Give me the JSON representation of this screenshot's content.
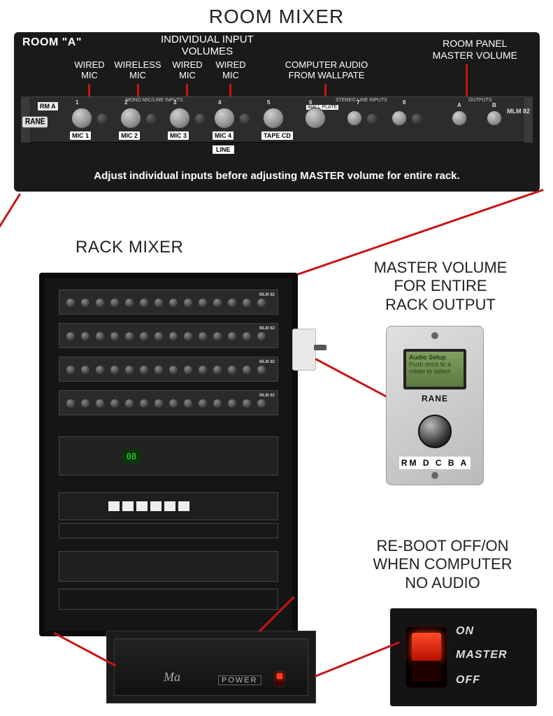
{
  "colors": {
    "accent": "#c91414",
    "panel": "#1a1a1a",
    "strip": "#2c2c2c",
    "text": "#222222",
    "white": "#ffffff"
  },
  "title": "ROOM MIXER",
  "mixer": {
    "room_label": "ROOM \"A\"",
    "individual_volumes": "INDIVIDUAL INPUT\nVOLUMES",
    "master_volume_label": "ROOM PANEL\nMASTER VOLUME",
    "columns": [
      {
        "label": "WIRED\nMIC",
        "tag": "MIC 1",
        "num": "1"
      },
      {
        "label": "WIRELESS\nMIC",
        "tag": "MIC 2",
        "num": "2"
      },
      {
        "label": "WIRED\nMIC",
        "tag": "MIC 3",
        "num": "3"
      },
      {
        "label": "WIRED\nMIC",
        "tag": "MIC 4",
        "num": "4"
      }
    ],
    "stereo_label": "COMPUTER AUDIO\nFROM WALLPATE",
    "stereo_tag": "TAPE CD",
    "stereo_nums": [
      "5",
      "6",
      "7",
      "8"
    ],
    "mono_silk": "MONO MIC/LINE INPUTS",
    "stereo_silk": "STEREO LINE INPUTS",
    "outputs_silk": "OUTPUTS",
    "wallplate_silk": "WALL PLATE",
    "output_letters": [
      "A",
      "B"
    ],
    "rm_tag": "RM A",
    "brand": "RANE",
    "model": "MLM 82",
    "line_tag": "LINE",
    "instruction": "Adjust individual inputs before adjusting MASTER volume for entire rack."
  },
  "rack": {
    "label": "RACK MIXER",
    "model": "MLM 82",
    "display": "08"
  },
  "master_plate": {
    "label": "MASTER VOLUME\nFOR ENTIRE\nRACK OUTPUT",
    "lcd_title": "Audio Setup",
    "lcd_sub": "Push once to a\nrotate to select",
    "brand": "RANE",
    "rm_row": "RM D C B A"
  },
  "reboot": {
    "label": "RE-BOOT OFF/ON\nWHEN COMPUTER\nNO AUDIO",
    "on": "ON",
    "master": "MASTER",
    "off": "OFF"
  },
  "amp": {
    "logo": "Ma",
    "power": "POWER"
  }
}
